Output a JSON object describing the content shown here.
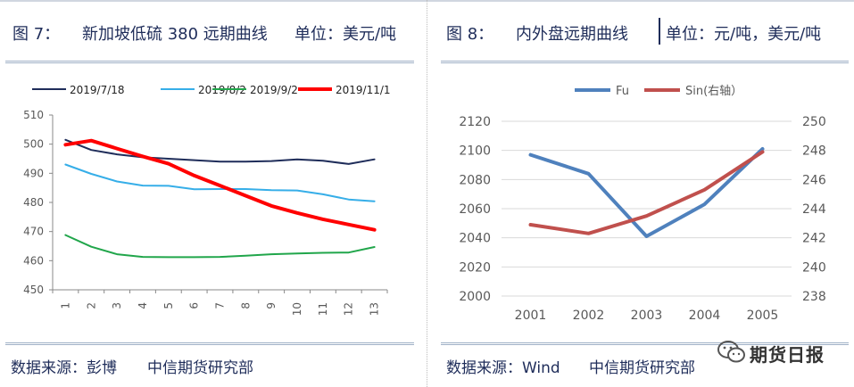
{
  "colors": {
    "title_text": "#1f2d5a",
    "rule": "#9fb0c6",
    "axis_text": "#595959",
    "left_series": [
      "#1f2d5a",
      "#36aee8",
      "#21a64b",
      "#ff0000"
    ],
    "right_series": [
      "#4f81bd",
      "#c0504d"
    ]
  },
  "left": {
    "fig_label": "图 7：",
    "title": "新加坡低硫 380 远期曲线",
    "unit": "单位：美元/吨",
    "source": "数据来源：彭博",
    "org": "中信期货研究部"
  },
  "right": {
    "fig_label": "图 8：",
    "title": "内外盘远期曲线",
    "unit": "单位：元/吨，美元/吨",
    "source": "数据来源：Wind",
    "org": "中信期货研究部"
  },
  "watermark": {
    "icon": "wechat-icon",
    "text": "期货日报"
  },
  "chart_data": [
    {
      "type": "line",
      "title": "新加坡低硫 380 远期曲线",
      "unit": "单位：美元/吨",
      "x": [
        "1",
        "2",
        "3",
        "4",
        "5",
        "6",
        "7",
        "8",
        "9",
        "10",
        "11",
        "12",
        "13"
      ],
      "ylim": [
        450,
        510
      ],
      "yticks": [
        450,
        460,
        470,
        480,
        490,
        500,
        510
      ],
      "legend_position": "top",
      "grid": false,
      "series": [
        {
          "name": "2019/7/18",
          "values": [
            501.5,
            498,
            496.5,
            495.5,
            495,
            494.5,
            494,
            494,
            494.2,
            494.8,
            494.3,
            493.2,
            494.8
          ]
        },
        {
          "name": "2019/8/2",
          "values": [
            493,
            489.8,
            487.2,
            485.8,
            485.7,
            484.5,
            484.6,
            484.6,
            484.2,
            484.1,
            482.8,
            481,
            480.4
          ]
        },
        {
          "name": "2019/9/2",
          "values": [
            468.8,
            464.8,
            462.2,
            461.3,
            461.2,
            461.2,
            461.3,
            461.7,
            462.2,
            462.5,
            462.7,
            462.8,
            464.7
          ]
        },
        {
          "name": "2019/11/1",
          "values": [
            499.8,
            501.2,
            498.5,
            495.8,
            493.3,
            489.2,
            485.8,
            482.3,
            478.8,
            476.4,
            474.2,
            472.4,
            470.6
          ]
        }
      ]
    },
    {
      "type": "line",
      "title": "内外盘远期曲线",
      "unit": "单位：元/吨，美元/吨",
      "x": [
        "2001",
        "2002",
        "2003",
        "2004",
        "2005"
      ],
      "ylim_left": [
        2000,
        2120
      ],
      "yticks_left": [
        2000,
        2020,
        2040,
        2060,
        2080,
        2100,
        2120
      ],
      "ylim_right": [
        238,
        250
      ],
      "yticks_right": [
        238,
        240,
        242,
        244,
        246,
        248,
        250
      ],
      "legend_position": "top",
      "grid": "horizontal",
      "series": [
        {
          "name": "Fu",
          "axis": "left",
          "values": [
            2097,
            2084,
            2041,
            2063,
            2101
          ]
        },
        {
          "name": "Sin(右轴）",
          "axis": "right",
          "values": [
            242.9,
            242.3,
            243.5,
            245.3,
            247.9
          ]
        }
      ]
    }
  ]
}
